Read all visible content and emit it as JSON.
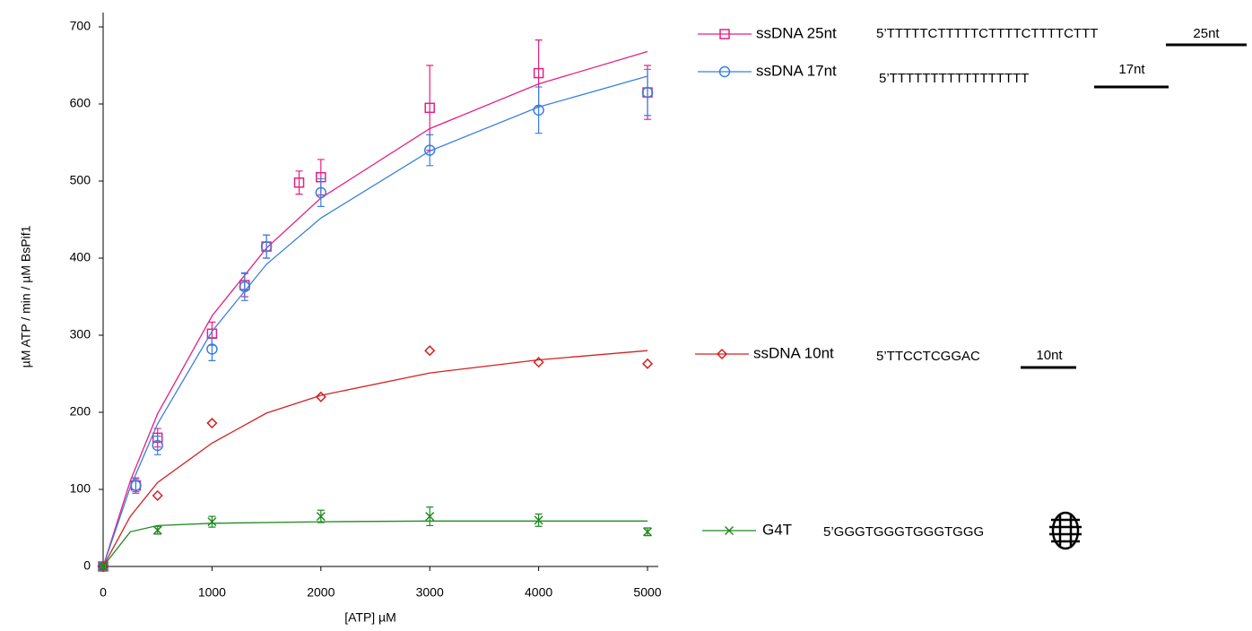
{
  "chart_data": {
    "type": "scatter",
    "x_label": "[ATP] µM",
    "y_label": "µM ATP / min / µM BsPif1",
    "xlim": [
      0,
      5000
    ],
    "xticks": [
      0,
      1000,
      2000,
      3000,
      4000,
      5000
    ],
    "ylim": [
      0,
      700
    ],
    "yticks": [
      0,
      100,
      200,
      300,
      400,
      500,
      600,
      700
    ],
    "series": [
      {
        "name": "ssDNA 25nt",
        "color": "#e6207f",
        "marker": "square",
        "sequence": "5’TTTTTCTTTTTCTTTTCTTTTCTTT",
        "length_label": "25nt",
        "x": [
          0,
          300,
          500,
          1000,
          1300,
          1500,
          1800,
          2000,
          3000,
          4000,
          5000
        ],
        "values": [
          0,
          105,
          167,
          302,
          365,
          415,
          498,
          505,
          595,
          640,
          615
        ],
        "errors": [
          4,
          10,
          12,
          15,
          15,
          15,
          15,
          23,
          55,
          43,
          35
        ],
        "fit": {
          "x": [
            0,
            250,
            500,
            1000,
            1500,
            2000,
            3000,
            4000,
            5000
          ],
          "values": [
            0,
            111,
            198,
            325,
            413,
            478,
            568,
            626,
            668
          ]
        }
      },
      {
        "name": "ssDNA 17nt",
        "color": "#3a7fe0",
        "marker": "circle",
        "sequence": "5’TTTTTTTTTTTTTTTTT",
        "length_label": "17nt",
        "x": [
          0,
          300,
          500,
          1000,
          1300,
          1500,
          2000,
          3000,
          4000,
          5000
        ],
        "values": [
          0,
          105,
          157,
          282,
          363,
          415,
          485,
          540,
          592,
          615
        ],
        "errors": [
          4,
          8,
          12,
          15,
          18,
          15,
          18,
          20,
          30,
          30
        ],
        "fit": {
          "x": [
            0,
            250,
            500,
            1000,
            1500,
            2000,
            3000,
            4000,
            5000
          ],
          "values": [
            0,
            103,
            185,
            305,
            392,
            452,
            539,
            596,
            636
          ]
        }
      },
      {
        "name": "ssDNA 10nt",
        "color": "#d42020",
        "marker": "diamond",
        "sequence": "5’TTCCTCGGAC",
        "length_label": "10nt",
        "x": [
          0,
          500,
          1000,
          2000,
          3000,
          4000,
          5000
        ],
        "values": [
          0,
          92,
          186,
          220,
          280,
          265,
          263
        ],
        "fit": {
          "x": [
            0,
            250,
            500,
            1000,
            1500,
            2000,
            3000,
            4000,
            5000
          ],
          "values": [
            0,
            65,
            109,
            160,
            199,
            222,
            251,
            268,
            280
          ]
        }
      },
      {
        "name": "G4T",
        "color": "#1f8a1f",
        "marker": "x",
        "sequence": "5’GGGTGGGTGGGTGGG",
        "x": [
          0,
          500,
          1000,
          2000,
          3000,
          4000,
          5000
        ],
        "values": [
          0,
          47,
          58,
          65,
          65,
          60,
          45
        ],
        "errors": [
          3,
          5,
          7,
          8,
          12,
          8,
          5
        ],
        "fit": {
          "x": [
            0,
            250,
            500,
            1000,
            2000,
            3000,
            4000,
            5000
          ],
          "values": [
            0,
            45,
            53,
            56,
            58,
            59,
            59,
            59
          ]
        }
      }
    ]
  }
}
